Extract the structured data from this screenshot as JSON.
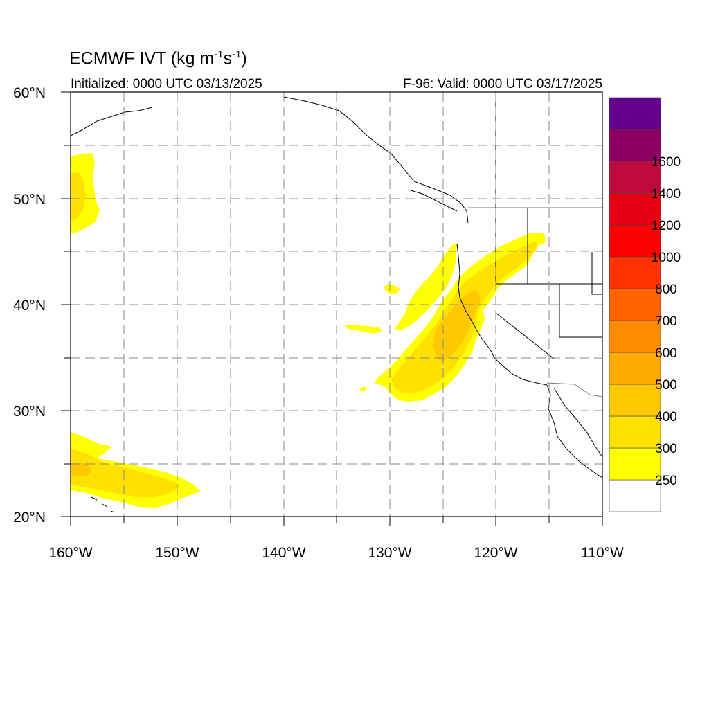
{
  "map": {
    "title_main": "ECMWF IVT (kg m",
    "title_exp1": "-1",
    "title_mid": "s",
    "title_exp2": "-1",
    "title_end": ")",
    "initialized": "Initialized: 0000 UTC 03/13/2025",
    "valid": "F-96: Valid: 0000 UTC 03/17/2025",
    "lat_labels": [
      "60°N",
      "50°N",
      "40°N",
      "30°N",
      "20°N"
    ],
    "lon_labels": [
      "160°W",
      "150°W",
      "140°W",
      "130°W",
      "120°W",
      "110°W"
    ],
    "extent": {
      "lon_min": -160,
      "lon_max": -110,
      "lat_min": 20,
      "lat_max": 60
    }
  },
  "colorbar": {
    "colors": [
      "#ffffff",
      "#ffff00",
      "#ffe100",
      "#ffc800",
      "#ffaa00",
      "#ff8c00",
      "#ff6400",
      "#ff3200",
      "#ff0000",
      "#e60014",
      "#be0a3c",
      "#8c0064",
      "#64008c"
    ],
    "labels": [
      "250",
      "300",
      "400",
      "500",
      "600",
      "700",
      "800",
      "1000",
      "1200",
      "1400",
      "1600"
    ]
  }
}
